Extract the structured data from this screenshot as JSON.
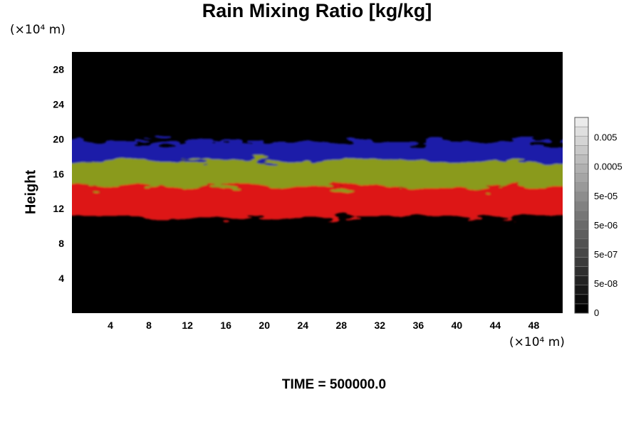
{
  "chart_data": {
    "type": "heatmap",
    "title": "Rain Mixing Ratio [kg/kg]",
    "ylabel": "Height",
    "x_unit": "(×10⁴ m)",
    "y_unit": "(×10⁴ m)",
    "x_ticks": [
      "4",
      "8",
      "12",
      "16",
      "20",
      "24",
      "28",
      "32",
      "36",
      "40",
      "44",
      "48"
    ],
    "y_ticks": [
      "4",
      "8",
      "12",
      "16",
      "20",
      "24",
      "28"
    ],
    "xlim": [
      0,
      51
    ],
    "ylim": [
      0,
      30
    ],
    "colorbar": {
      "labels": [
        "0",
        "5e-08",
        "5e-07",
        "5e-06",
        "5e-05",
        "0.0005",
        "0.005"
      ],
      "levels": 21,
      "colors": [
        "#000000",
        "#ffffff"
      ]
    },
    "layers": [
      {
        "color": "#1e1ea8",
        "y_range": [
          17.5,
          19.7
        ]
      },
      {
        "color": "#8a9a1c",
        "y_range": [
          14.5,
          17.5
        ]
      },
      {
        "color": "#dd1515",
        "y_range": [
          11.0,
          14.5
        ]
      }
    ],
    "annotation": "TIME = 500000.0"
  }
}
